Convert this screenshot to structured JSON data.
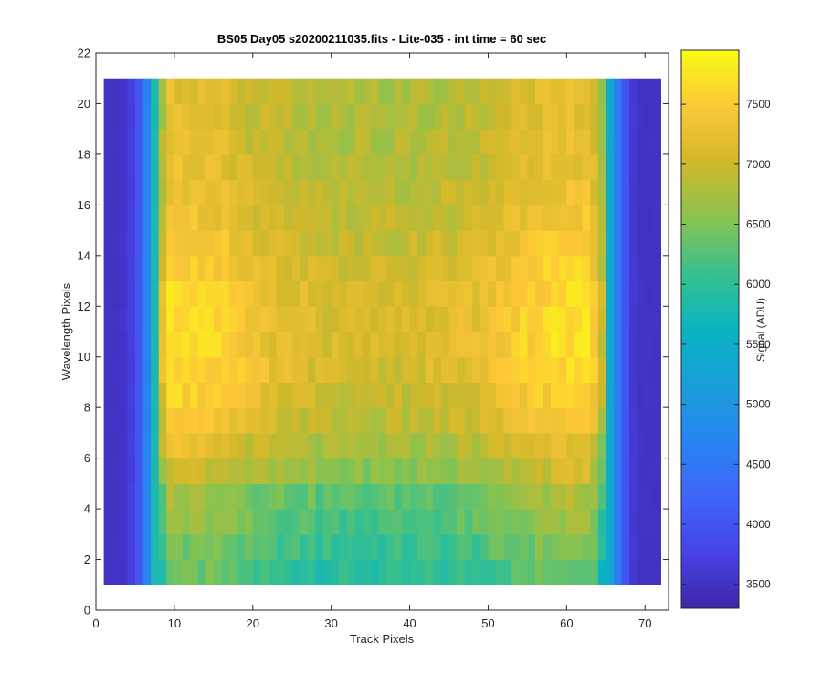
{
  "chart_data": {
    "type": "heatmap",
    "title": "BS05 Day05  s20200211035.fits - Lite-035 - int time = 60 sec",
    "xlabel": "Track Pixels",
    "ylabel": "Wavelength Pixels",
    "colorbar_label": "Signal (ADU)",
    "colormap": "parula",
    "grid": false,
    "xlim": [
      0,
      73
    ],
    "ylim": [
      0,
      22
    ],
    "x_ticks": [
      0,
      10,
      20,
      30,
      40,
      50,
      60,
      70
    ],
    "y_ticks": [
      0,
      2,
      4,
      6,
      8,
      10,
      12,
      14,
      16,
      18,
      20,
      22
    ],
    "clim": [
      3300,
      7950
    ],
    "colorbar_ticks": [
      3500,
      4000,
      4500,
      5000,
      5500,
      6000,
      6500,
      7000,
      7500
    ],
    "x_range": [
      1,
      72
    ],
    "y_range": [
      1,
      21
    ],
    "n_cols": 71,
    "n_rows": 20,
    "column_profile": [
      3500,
      3500,
      3550,
      3700,
      4000,
      4700,
      5800,
      6700,
      7150,
      7150,
      7100,
      7100,
      7100,
      7100,
      7050,
      7050,
      7000,
      6950,
      6900,
      6850,
      6850,
      6800,
      6800,
      6800,
      6750,
      6750,
      6750,
      6700,
      6700,
      6700,
      6700,
      6700,
      6700,
      6700,
      6700,
      6700,
      6700,
      6700,
      6700,
      6700,
      6750,
      6750,
      6750,
      6750,
      6750,
      6800,
      6800,
      6800,
      6850,
      6900,
      6950,
      6950,
      7000,
      7050,
      7050,
      7100,
      7100,
      7150,
      7150,
      7150,
      7150,
      7150,
      6950,
      6450,
      5400,
      4600,
      4000,
      3600,
      3500,
      3500,
      3500
    ],
    "row_profile": [
      -750,
      -650,
      -520,
      -420,
      -160,
      0,
      150,
      260,
      330,
      360,
      360,
      340,
      300,
      250,
      200,
      150,
      110,
      90,
      70,
      60
    ],
    "edge_center_boost": 250
  }
}
